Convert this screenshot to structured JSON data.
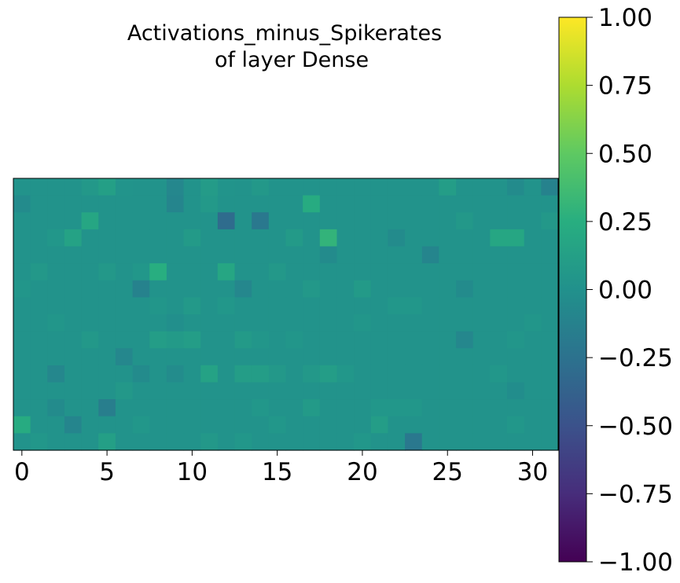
{
  "chart_data": {
    "type": "heatmap",
    "title": "Activations_minus_Spikerates",
    "subtitle": "of layer Dense",
    "xlabel": "",
    "ylabel": "",
    "x_ticks": [
      "0",
      "5",
      "10",
      "15",
      "20",
      "25",
      "30"
    ],
    "colorbar": {
      "colormap": "viridis",
      "range": [
        -1.0,
        1.0
      ],
      "ticks": [
        "1.00",
        "0.75",
        "0.50",
        "0.25",
        "0.00",
        "−0.25",
        "−0.50",
        "−0.75",
        "−1.00"
      ]
    },
    "grid": false,
    "rows": 16,
    "cols": 32,
    "values": [
      [
        0.02,
        0.02,
        0.02,
        0.02,
        0.06,
        0.12,
        0.03,
        0.02,
        0.02,
        -0.08,
        0.02,
        0.09,
        0.03,
        0.02,
        0.06,
        0.02,
        0.02,
        0.02,
        0.02,
        0.02,
        0.02,
        0.02,
        0.02,
        0.02,
        0.02,
        0.1,
        0.02,
        0.02,
        0.02,
        -0.05,
        0.02,
        -0.12
      ],
      [
        -0.05,
        0.02,
        0.02,
        0.02,
        0.02,
        0.02,
        0.02,
        0.02,
        0.02,
        -0.1,
        0.02,
        0.07,
        0.02,
        0.02,
        0.02,
        0.02,
        0.02,
        0.22,
        0.02,
        0.02,
        0.02,
        0.02,
        0.02,
        0.02,
        0.02,
        0.02,
        0.02,
        0.02,
        0.02,
        0.02,
        0.02,
        0.02
      ],
      [
        0.02,
        0.02,
        0.02,
        0.02,
        0.18,
        0.02,
        0.02,
        0.02,
        0.02,
        0.02,
        0.02,
        0.02,
        -0.3,
        0.02,
        -0.2,
        0.02,
        0.02,
        0.02,
        0.02,
        0.02,
        0.02,
        0.02,
        0.02,
        0.02,
        0.02,
        0.02,
        0.06,
        0.02,
        0.02,
        0.02,
        0.02,
        0.06
      ],
      [
        0.02,
        0.02,
        0.05,
        0.15,
        0.02,
        0.02,
        0.02,
        0.02,
        0.02,
        0.02,
        0.08,
        0.02,
        0.02,
        0.02,
        0.02,
        0.02,
        0.08,
        0.02,
        0.3,
        0.02,
        0.02,
        0.02,
        -0.05,
        0.02,
        0.02,
        0.02,
        0.02,
        0.02,
        0.18,
        0.18,
        0.02,
        0.02
      ],
      [
        0.02,
        0.02,
        0.02,
        0.02,
        0.02,
        0.02,
        0.02,
        0.02,
        0.02,
        0.02,
        0.02,
        0.02,
        0.02,
        0.02,
        0.02,
        0.02,
        0.02,
        0.02,
        -0.05,
        0.02,
        0.02,
        0.02,
        0.02,
        0.02,
        -0.1,
        0.02,
        0.02,
        0.02,
        0.02,
        0.02,
        0.02,
        0.02
      ],
      [
        0.02,
        0.06,
        0.02,
        0.02,
        0.02,
        0.06,
        0.02,
        0.05,
        0.25,
        0.02,
        0.02,
        0.02,
        0.18,
        0.02,
        0.02,
        0.06,
        0.02,
        0.02,
        0.02,
        0.02,
        0.02,
        0.02,
        0.02,
        0.02,
        0.02,
        0.02,
        0.02,
        0.02,
        0.02,
        0.02,
        0.02,
        0.02
      ],
      [
        0.04,
        0.02,
        0.02,
        0.02,
        0.02,
        0.02,
        0.02,
        -0.12,
        0.02,
        0.02,
        0.02,
        0.02,
        0.02,
        -0.08,
        0.02,
        0.02,
        0.02,
        0.06,
        0.02,
        0.02,
        0.08,
        0.02,
        0.02,
        0.02,
        0.02,
        0.02,
        -0.05,
        0.02,
        0.02,
        0.02,
        0.02,
        0.02
      ],
      [
        0.02,
        0.02,
        0.02,
        0.02,
        0.02,
        0.02,
        0.02,
        0.02,
        0.04,
        0.02,
        0.07,
        0.02,
        0.05,
        0.02,
        0.02,
        0.02,
        0.02,
        0.02,
        0.02,
        0.02,
        0.02,
        0.02,
        0.05,
        0.05,
        0.02,
        0.02,
        0.02,
        0.02,
        0.02,
        0.02,
        0.02,
        0.02
      ],
      [
        0.02,
        0.02,
        0.04,
        0.02,
        0.02,
        0.02,
        0.02,
        0.02,
        0.02,
        -0.02,
        0.02,
        0.02,
        0.02,
        0.02,
        0.02,
        0.02,
        0.02,
        0.02,
        0.02,
        0.02,
        0.04,
        0.02,
        0.02,
        0.02,
        0.02,
        0.02,
        0.02,
        0.02,
        0.02,
        0.02,
        0.04,
        0.02
      ],
      [
        0.02,
        0.02,
        0.02,
        0.02,
        0.06,
        0.02,
        0.02,
        0.02,
        0.1,
        0.08,
        0.1,
        0.02,
        0.02,
        0.08,
        0.04,
        0.02,
        0.04,
        0.02,
        0.02,
        0.02,
        0.02,
        0.02,
        0.02,
        0.02,
        0.02,
        0.02,
        -0.08,
        0.02,
        0.02,
        0.04,
        0.02,
        0.02
      ],
      [
        0.02,
        0.02,
        0.02,
        0.02,
        0.02,
        0.02,
        -0.08,
        0.02,
        0.02,
        0.02,
        0.02,
        0.02,
        0.02,
        0.02,
        0.02,
        0.02,
        0.02,
        0.02,
        0.02,
        0.02,
        0.02,
        0.02,
        0.02,
        0.02,
        0.02,
        0.02,
        0.02,
        0.02,
        0.02,
        0.02,
        0.02,
        0.02
      ],
      [
        0.02,
        0.02,
        -0.08,
        0.02,
        0.02,
        0.02,
        0.02,
        -0.05,
        0.02,
        -0.04,
        0.02,
        0.15,
        0.02,
        0.1,
        0.1,
        0.06,
        0.02,
        0.06,
        0.1,
        0.05,
        0.02,
        0.02,
        0.02,
        0.02,
        0.02,
        0.02,
        0.02,
        0.02,
        0.05,
        0.02,
        0.02,
        0.02
      ],
      [
        0.02,
        0.02,
        0.02,
        0.02,
        0.02,
        0.02,
        0.06,
        0.02,
        0.02,
        0.02,
        0.02,
        0.02,
        0.02,
        0.02,
        0.02,
        0.02,
        0.02,
        0.02,
        0.02,
        0.02,
        0.02,
        0.02,
        0.02,
        0.02,
        0.02,
        0.02,
        0.02,
        0.02,
        0.02,
        -0.03,
        0.02,
        0.02
      ],
      [
        0.02,
        0.02,
        -0.05,
        0.02,
        0.02,
        -0.15,
        0.02,
        0.02,
        0.02,
        0.02,
        0.02,
        0.02,
        0.02,
        0.02,
        0.05,
        0.02,
        0.02,
        0.08,
        0.02,
        0.02,
        0.02,
        0.05,
        0.05,
        0.05,
        0.02,
        0.02,
        0.02,
        0.02,
        0.02,
        0.02,
        0.02,
        0.02
      ],
      [
        0.22,
        0.02,
        0.02,
        -0.1,
        0.02,
        0.02,
        0.02,
        0.05,
        0.02,
        0.02,
        0.02,
        0.02,
        0.02,
        0.02,
        0.02,
        0.05,
        0.02,
        0.02,
        0.02,
        0.02,
        0.02,
        0.1,
        0.02,
        0.02,
        0.02,
        0.02,
        0.02,
        0.02,
        0.02,
        0.05,
        0.02,
        0.02
      ],
      [
        0.02,
        0.05,
        0.02,
        0.02,
        0.02,
        0.12,
        0.02,
        0.02,
        0.02,
        0.02,
        0.02,
        0.06,
        0.02,
        0.05,
        0.02,
        0.02,
        0.02,
        0.02,
        0.02,
        0.02,
        0.05,
        0.02,
        0.02,
        -0.2,
        0.02,
        0.02,
        0.02,
        0.02,
        0.02,
        0.02,
        0.02,
        0.02
      ]
    ]
  }
}
